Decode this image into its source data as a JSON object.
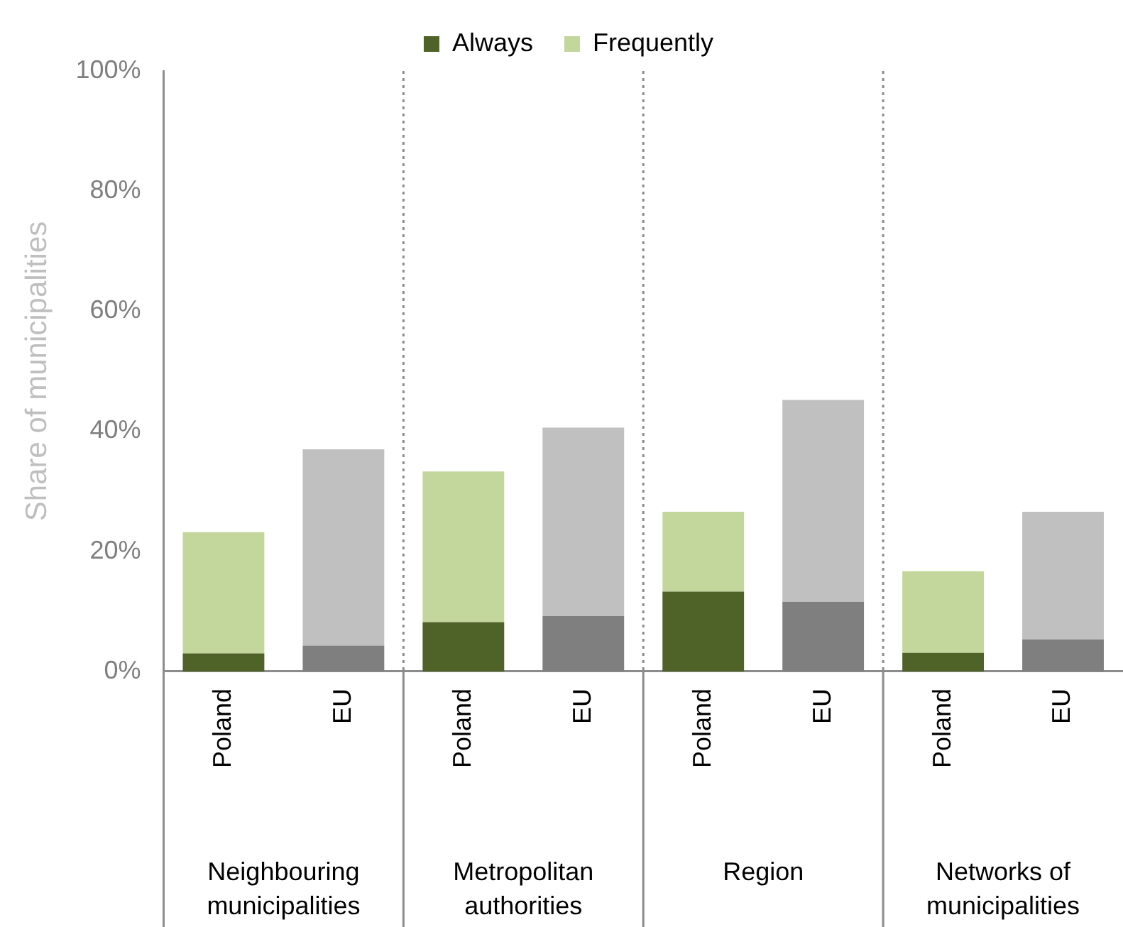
{
  "chart_data": {
    "type": "bar",
    "stacked": true,
    "ylabel": "Share of municipalities",
    "categories": [
      "Poland",
      "EU",
      "Poland",
      "EU",
      "Poland",
      "EU",
      "Poland",
      "EU"
    ],
    "series": [
      {
        "name": "Always",
        "color": "#4f6228",
        "colors": [
          "#4f6228",
          "#7f7f7f",
          "#4f6228",
          "#7f7f7f",
          "#4f6228",
          "#7f7f7f",
          "#4f6228",
          "#7f7f7f"
        ],
        "values": [
          3,
          4.3,
          8.2,
          9.2,
          13.3,
          11.6,
          3.1,
          5.3
        ]
      },
      {
        "name": "Frequently",
        "color": "#c3d69b",
        "colors": [
          "#c3d69b",
          "#c0c0c0",
          "#c3d69b",
          "#c0c0c0",
          "#c3d69b",
          "#c0c0c0",
          "#c3d69b",
          "#c0c0c0"
        ],
        "values": [
          20.2,
          32.7,
          25.1,
          31.4,
          13.3,
          33.6,
          13.6,
          21.3
        ]
      }
    ],
    "ylim": [
      0,
      100
    ],
    "yticks": [
      {
        "value": 0,
        "label": "0%"
      },
      {
        "value": 20,
        "label": "20%"
      },
      {
        "value": 40,
        "label": "40%"
      },
      {
        "value": 60,
        "label": "60%"
      },
      {
        "value": 80,
        "label": "80%"
      },
      {
        "value": 100,
        "label": "100%"
      }
    ],
    "grid": false,
    "legend": "top",
    "annotations": [
      "Neighbouring municipalities",
      "Metropolitan authorities",
      "Region",
      "Networks of municipalities"
    ]
  }
}
